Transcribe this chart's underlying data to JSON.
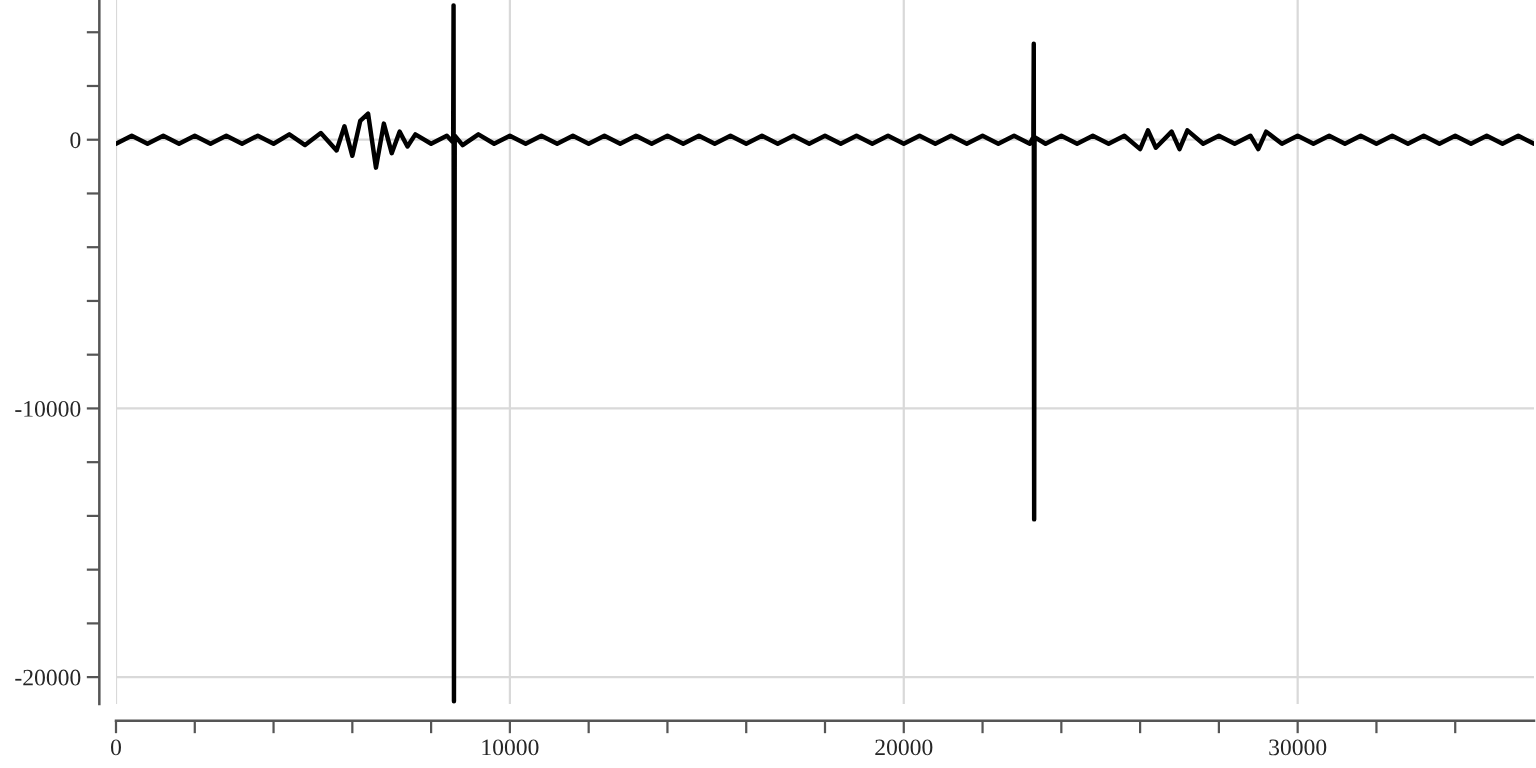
{
  "chart_data": {
    "type": "line",
    "x": [
      0,
      400,
      800,
      1200,
      1600,
      2000,
      2400,
      2800,
      3200,
      3600,
      4000,
      4400,
      4800,
      5200,
      5600,
      5800,
      6000,
      6200,
      6400,
      6600,
      6800,
      7000,
      7200,
      7400,
      7600,
      8000,
      8400,
      8560,
      8570,
      8580,
      8600,
      8800,
      9200,
      9600,
      10000,
      10400,
      10800,
      11200,
      11600,
      12000,
      12400,
      12800,
      13200,
      13600,
      14000,
      14400,
      14800,
      15200,
      15600,
      16000,
      16400,
      16800,
      17200,
      17600,
      18000,
      18400,
      18800,
      19200,
      19600,
      20000,
      20400,
      20800,
      21200,
      21600,
      22000,
      22400,
      22800,
      23200,
      23290,
      23300,
      23310,
      23320,
      23600,
      24000,
      24400,
      24800,
      25200,
      25600,
      26000,
      26200,
      26400,
      26800,
      27000,
      27200,
      27600,
      28000,
      28400,
      28800,
      29000,
      29200,
      29600,
      30000,
      30400,
      30800,
      31200,
      31600,
      32000,
      32400,
      32800,
      33200,
      33600,
      34000,
      34400,
      34800,
      35200,
      35600,
      36000
    ],
    "series": [
      {
        "color": "#000000",
        "values": [
          -150,
          150,
          -150,
          150,
          -150,
          150,
          -150,
          150,
          -150,
          150,
          -150,
          200,
          -200,
          250,
          -400,
          500,
          -600,
          700,
          970,
          -1040,
          600,
          -500,
          300,
          -250,
          200,
          -150,
          150,
          -100,
          5000,
          -20900,
          150,
          -200,
          200,
          -150,
          150,
          -150,
          150,
          -150,
          150,
          -150,
          150,
          -150,
          150,
          -150,
          150,
          -150,
          150,
          -150,
          150,
          -150,
          150,
          -150,
          150,
          -150,
          150,
          -150,
          150,
          -150,
          150,
          -150,
          150,
          -150,
          150,
          -150,
          150,
          -150,
          150,
          -150,
          100,
          3570,
          -14130,
          100,
          -150,
          150,
          -150,
          150,
          -150,
          150,
          -350,
          350,
          -300,
          300,
          -350,
          350,
          -150,
          150,
          -150,
          150,
          -350,
          300,
          -150,
          150,
          -150,
          150,
          -150,
          150,
          -150,
          150,
          -150,
          150,
          -150,
          150,
          -150,
          150,
          -150,
          150,
          -150
        ]
      }
    ],
    "xlim": [
      0,
      36000
    ],
    "ylim": [
      -21000,
      5200
    ],
    "xticks": [
      0,
      {
        "value": 2000,
        "label": null
      },
      {
        "value": 4000,
        "label": null
      },
      {
        "value": 6000,
        "label": null
      },
      {
        "value": 8000,
        "label": null
      },
      10000,
      {
        "value": 12000,
        "label": null
      },
      {
        "value": 14000,
        "label": null
      },
      {
        "value": 16000,
        "label": null
      },
      {
        "value": 18000,
        "label": null
      },
      20000,
      {
        "value": 22000,
        "label": null
      },
      {
        "value": 24000,
        "label": null
      },
      {
        "value": 26000,
        "label": null
      },
      {
        "value": 28000,
        "label": null
      },
      30000,
      {
        "value": 32000,
        "label": null
      },
      {
        "value": 34000,
        "label": null
      }
    ],
    "yticks": [
      {
        "value": 4000,
        "label": null
      },
      {
        "value": 2000,
        "label": null
      },
      0,
      {
        "value": -2000,
        "label": null
      },
      {
        "value": -4000,
        "label": null
      },
      {
        "value": -6000,
        "label": null
      },
      {
        "value": -8000,
        "label": null
      },
      -10000,
      {
        "value": -12000,
        "label": null
      },
      {
        "value": -14000,
        "label": null
      },
      {
        "value": -16000,
        "label": null
      },
      {
        "value": -18000,
        "label": null
      },
      -20000
    ],
    "grid": true,
    "line_style": "solid",
    "marker": "none"
  }
}
